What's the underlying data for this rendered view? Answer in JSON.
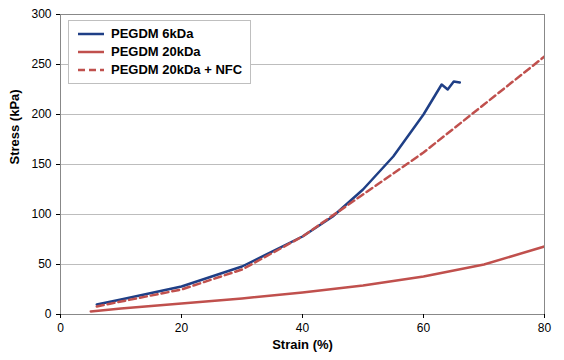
{
  "chart_data": {
    "type": "line",
    "x_label": "Strain (%)",
    "y_label": "Stress (kPa)",
    "xlim": [
      0,
      80
    ],
    "xticks": [
      0,
      20,
      40,
      60,
      80
    ],
    "ylim": [
      0,
      300
    ],
    "yticks": [
      0,
      50,
      100,
      150,
      200,
      250,
      300
    ],
    "grid": true,
    "legend": "top-left",
    "series": [
      {
        "name": "PEGDM 6kDa",
        "color": "#1f3f86",
        "line_style": "solid",
        "x": [
          6,
          10,
          20,
          30,
          40,
          45,
          50,
          55,
          60,
          62,
          63,
          64,
          65,
          66
        ],
        "values": [
          10,
          15,
          28,
          48,
          78,
          98,
          125,
          158,
          200,
          220,
          230,
          225,
          233,
          232
        ]
      },
      {
        "name": "PEGDM 20kDa",
        "color": "#c0504d",
        "line_style": "solid",
        "x": [
          5,
          10,
          20,
          30,
          40,
          50,
          60,
          70,
          80
        ],
        "values": [
          3,
          6,
          11,
          16,
          22,
          29,
          38,
          50,
          68
        ]
      },
      {
        "name": "PEGDM 20kDa + NFC",
        "color": "#c0504d",
        "line_style": "dashed",
        "x": [
          6,
          10,
          20,
          30,
          40,
          50,
          60,
          70,
          80
        ],
        "values": [
          8,
          13,
          25,
          45,
          78,
          120,
          162,
          210,
          258
        ]
      }
    ]
  }
}
